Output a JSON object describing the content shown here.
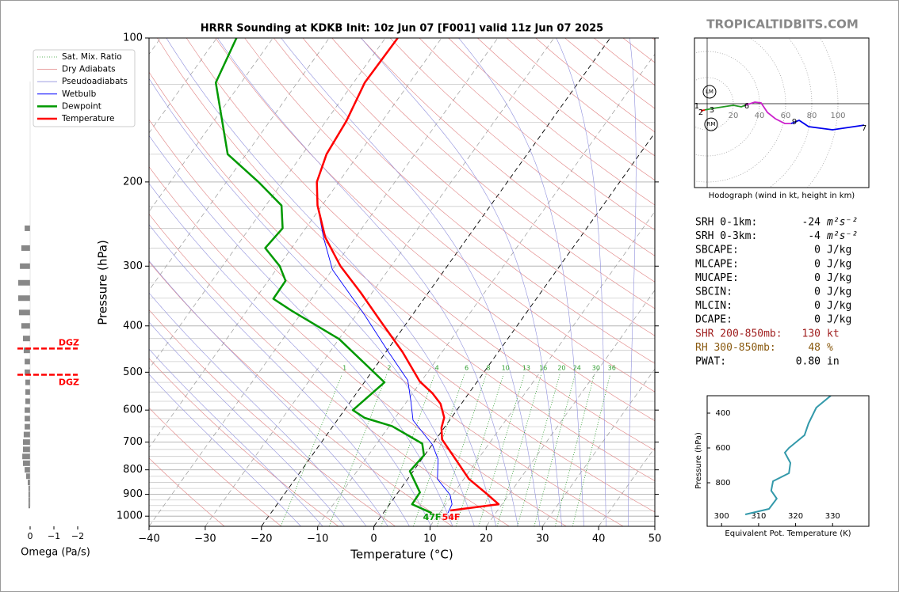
{
  "watermark": "TROPICALTIDBITS.COM",
  "chart_data": [
    {
      "type": "skewt",
      "title": "HRRR Sounding at KDKB Init: 10z Jun 07 [F001] valid 11z Jun 07 2025",
      "xlabel": "Temperature (°C)",
      "ylabel": "Pressure (hPa)",
      "xlim": [
        -40,
        50
      ],
      "ylim": [
        1050,
        100
      ],
      "log_y": true,
      "xticks": [
        {
          "value": -40,
          "label": "−40"
        },
        {
          "value": -30,
          "label": "−30"
        },
        {
          "value": -20,
          "label": "−20"
        },
        {
          "value": -10,
          "label": "−10"
        },
        0,
        10,
        20,
        30,
        40,
        50
      ],
      "yticks": [
        100,
        200,
        300,
        400,
        500,
        600,
        700,
        800,
        900,
        1000
      ],
      "yminor_step": 25,
      "grid": true,
      "legend": "upper left",
      "mixing_ratios": [
        1,
        2,
        4,
        6,
        8,
        10,
        13,
        16,
        20,
        24,
        30,
        36
      ],
      "reference_lines": [
        {
          "name": "Sat. Mix. Ratio",
          "color": "#2e9e2e"
        },
        {
          "name": "Dry Adiabats",
          "color": "#e08080"
        },
        {
          "name": "Pseudoadiabats",
          "color": "#9090dd"
        }
      ],
      "series": [
        {
          "name": "Wetbulb",
          "color": "#0000ff",
          "x": [
            11.5,
            11.1,
            9.6,
            5.3,
            2.9,
            0.0,
            -6.5,
            -9.3,
            -12.5,
            -19.5,
            -28.3,
            -40.0,
            -45.7,
            -50.8,
            -53.9,
            -55.7,
            -56.4,
            -58.0,
            -57.8
          ],
          "y": [
            985,
            944,
            903,
            836,
            760,
            708,
            630,
            575,
            520,
            454,
            381,
            305,
            261,
            224,
            200,
            175,
            149,
            124,
            100
          ]
        },
        {
          "name": "Dewpoint",
          "color": "#009900",
          "x": [
            8.6,
            4.0,
            3.9,
            -0.6,
            -0.1,
            -1.9,
            -9.5,
            -15.4,
            -18.5,
            -16.4,
            -30.0,
            -42.0,
            -46.8,
            -46.9,
            -49.8,
            -54.7,
            -54.1,
            -57.2,
            -64.3,
            -73.3,
            -84.5,
            -86.5
          ],
          "y": [
            985,
            944,
            892,
            805,
            746,
            705,
            648,
            623,
            600,
            525,
            426,
            372,
            351,
            322,
            300,
            275,
            250,
            224,
            200,
            175,
            124,
            100
          ]
        },
        {
          "name": "Temperature",
          "color": "#ff0000",
          "x": [
            11.6,
            19.4,
            15.5,
            10.9,
            6.0,
            1.1,
            -0.5,
            -1.3,
            -3.7,
            -6.5,
            -10.2,
            -17.0,
            -25.0,
            -32.0,
            -39.0,
            -45.4,
            -50.8,
            -53.9,
            -55.7,
            -56.4,
            -58.0,
            -57.8
          ],
          "y": [
            973,
            944,
            892,
            836,
            760,
            691,
            653,
            622,
            582,
            553,
            523,
            454,
            390,
            341,
            300,
            261,
            224,
            200,
            175,
            149,
            124,
            100
          ]
        }
      ],
      "annotations": [
        {
          "text": "47F",
          "color": "#009900"
        },
        {
          "text": "54F",
          "color": "#ff0000"
        }
      ]
    },
    {
      "type": "omega",
      "xlabel": "Omega (Pa/s)",
      "xlim": [
        0.53,
        -2.07
      ],
      "color": "#888888",
      "xticks": [
        0,
        {
          "value": -1,
          "label": "−1"
        },
        {
          "value": -2,
          "label": "−2"
        }
      ],
      "pressure": [
        250,
        275,
        300,
        325,
        350,
        375,
        400,
        425,
        450,
        475,
        500,
        525,
        550,
        575,
        600,
        625,
        650,
        675,
        700,
        725,
        750,
        775,
        800,
        825,
        850,
        875,
        900,
        925,
        950
      ],
      "values": [
        0.23,
        0.37,
        0.43,
        0.5,
        0.5,
        0.47,
        0.37,
        0.3,
        0.27,
        0.23,
        0.23,
        0.2,
        0.2,
        0.2,
        0.23,
        0.23,
        0.23,
        0.27,
        0.3,
        0.3,
        0.33,
        0.3,
        0.23,
        0.17,
        0.1,
        0.07,
        0.07,
        0.07,
        0.07
      ],
      "dgz": [
        {
          "pressure": 446,
          "label": "DGZ"
        },
        {
          "pressure": 506,
          "label": "DGZ"
        }
      ]
    },
    {
      "type": "hodograph",
      "xlabel": "Hodograph (wind in kt, height in km)",
      "ring_ticks": [
        20,
        40,
        60,
        80,
        100
      ],
      "segments": [
        {
          "color": "#ff0000",
          "u": [
            -4.8,
            -1.8
          ],
          "v": [
            -5.5,
            -4.8
          ]
        },
        {
          "color": "#229922",
          "u": [
            -1.8,
            4.8,
            20,
            26.1,
            29.1
          ],
          "v": [
            -4.8,
            -3.6,
            -1.2,
            -2.4,
            -1.2
          ]
        },
        {
          "color": "#cc22cc",
          "u": [
            29.1,
            36.4,
            41.2,
            46.1,
            52.1,
            59.4,
            64.2
          ],
          "v": [
            -1.2,
            1.2,
            0.6,
            -6.7,
            -11.5,
            -15.2,
            -15.2
          ]
        },
        {
          "color": "#0000ee",
          "u": [
            64.2,
            70.3,
            77.6,
            95.8,
            120
          ],
          "v": [
            -15.2,
            -12.7,
            -17.6,
            -20,
            -16.4
          ]
        }
      ],
      "height_labels": [
        {
          "label": "1",
          "u": -7.9,
          "v": -1.8
        },
        {
          "label": "2",
          "u": -4.8,
          "v": -6.7
        },
        {
          "label": "3",
          "u": 3.6,
          "v": -4.8
        },
        {
          "label": "6",
          "u": 30.3,
          "v": -1.8
        },
        {
          "label": "9",
          "u": 66.7,
          "v": -13.9
        },
        {
          "label": "7",
          "u": 120,
          "v": -18.8
        }
      ],
      "markers": [
        {
          "label": "LM",
          "u": 1.8,
          "v": 9.1
        },
        {
          "label": "RM",
          "u": 3,
          "v": -15.8
        }
      ]
    },
    {
      "type": "line",
      "xlabel": "Equivalent Pot. Temperature (K)",
      "ylabel": "Pressure (hPa)",
      "xlim": [
        296.1,
        339.8
      ],
      "ylim": [
        1050,
        300
      ],
      "xticks": [
        300,
        310,
        320,
        330
      ],
      "yticks": [
        400,
        600,
        800
      ],
      "color": "#3399aa",
      "x": [
        306.4,
        312.8,
        314.9,
        313.4,
        313.9,
        318.2,
        318.6,
        317.1,
        318.2,
        322.4,
        323.5,
        325.6,
        329.5
      ],
      "y": [
        982,
        950,
        891,
        845,
        791,
        745,
        686,
        627,
        600,
        527,
        459,
        368,
        300
      ]
    }
  ],
  "parameters": [
    {
      "label": "SRH 0-1km:",
      "value": -24,
      "unit": "m²s⁻²"
    },
    {
      "label": "SRH 0-3km:",
      "value": -4,
      "unit": "m²s⁻²"
    },
    {
      "label": "SBCAPE:",
      "value": 0,
      "unit": "J/kg"
    },
    {
      "label": "MLCAPE:",
      "value": 0,
      "unit": "J/kg"
    },
    {
      "label": "MUCAPE:",
      "value": 0,
      "unit": "J/kg"
    },
    {
      "label": "SBCIN:",
      "value": 0,
      "unit": "J/kg"
    },
    {
      "label": "MLCIN:",
      "value": 0,
      "unit": "J/kg"
    },
    {
      "label": "DCAPE:",
      "value": 0,
      "unit": "J/kg"
    },
    {
      "label": "SHR 200-850mb:",
      "value": 130,
      "unit": "kt",
      "color": "#a02020"
    },
    {
      "label": "RH 300-850mb:",
      "value": 48,
      "unit": "%",
      "color": "#8a5a10"
    },
    {
      "label": "PWAT:",
      "value": "0.80",
      "unit": "in"
    }
  ]
}
